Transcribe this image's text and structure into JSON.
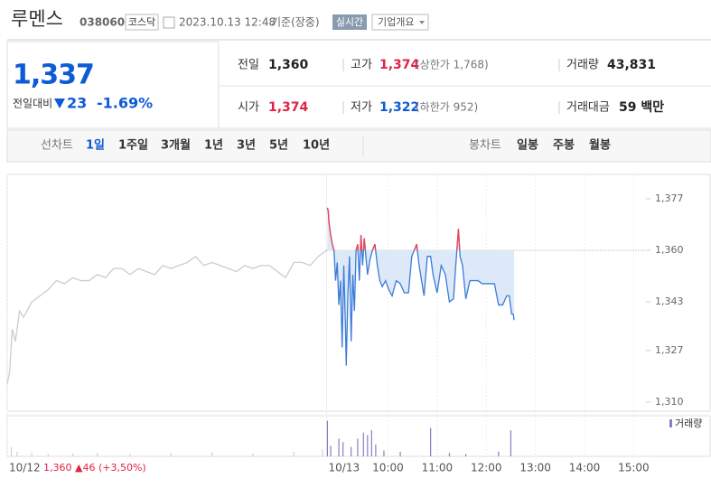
{
  "header": {
    "name": "루멘스",
    "code": "038060",
    "market": "코스닥",
    "datetime": "2023.10.13 12:48",
    "basis": "기준(장중)",
    "realtime": "실시간",
    "company": "기업개요"
  },
  "quote": {
    "price": "1,337",
    "change_label": "전일대비",
    "change": "23",
    "change_pct": "-1.69%",
    "fields": [
      {
        "label": "전일",
        "value": "1,360"
      },
      {
        "label": "고가",
        "value": "1,374",
        "note": "(상한가 1,768)"
      },
      {
        "label": "거래량",
        "value": "43,831"
      },
      {
        "label": "시가",
        "value": "1,374"
      },
      {
        "label": "저가",
        "value": "1,322",
        "note": "(하한가 952)"
      },
      {
        "label": "거래대금",
        "value": "59 백만"
      }
    ]
  },
  "tabs": {
    "line_label": "선차트",
    "line": [
      "1일",
      "1주일",
      "3개월",
      "1년",
      "3년",
      "5년",
      "10년"
    ],
    "candle_label": "봉차트",
    "candle": [
      "일봉",
      "주봉",
      "월봉"
    ]
  },
  "chart_data": {
    "type": "line",
    "annotation": "1,360 ▲46 (+3,50%)",
    "xlim": [
      0,
      780
    ],
    "xticks": [
      {
        "value": 0,
        "label": "10/12"
      },
      {
        "value": 390,
        "label": "10/13"
      },
      {
        "value": 465,
        "label": "10:00"
      },
      {
        "value": 525,
        "label": "11:00"
      },
      {
        "value": 585,
        "label": "12:00"
      },
      {
        "value": 645,
        "label": "13:00"
      },
      {
        "value": 705,
        "label": "14:00"
      },
      {
        "value": 765,
        "label": "15:00"
      }
    ],
    "ylim": [
      1307,
      1385
    ],
    "yticks": [
      {
        "value": 1310,
        "label": "1,310"
      },
      {
        "value": 1327,
        "label": "1,327"
      },
      {
        "value": 1343,
        "label": "1,343"
      },
      {
        "value": 1360,
        "label": "1,360"
      },
      {
        "value": 1377,
        "label": "1,377"
      }
    ],
    "reference_line": 1360,
    "series": [
      {
        "color": "#cccccc",
        "x": [
          0,
          3,
          6,
          10,
          15,
          20,
          30,
          40,
          50,
          60,
          70,
          80,
          90,
          100,
          110,
          120,
          130,
          140,
          150,
          160,
          170,
          180,
          190,
          200,
          210,
          220,
          230,
          240,
          250,
          260,
          270,
          280,
          290,
          300,
          310,
          320,
          330,
          340,
          350,
          360,
          370,
          380,
          390
        ],
        "values": [
          1316,
          1320,
          1334,
          1330,
          1340,
          1338,
          1343,
          1345,
          1347,
          1350,
          1349,
          1351,
          1350,
          1350,
          1352,
          1351,
          1354,
          1354,
          1352,
          1354,
          1353,
          1352,
          1355,
          1354,
          1355,
          1356,
          1358,
          1355,
          1356,
          1355,
          1354,
          1353,
          1355,
          1354,
          1355,
          1355,
          1353,
          1351,
          1356,
          1356,
          1355,
          1358,
          1360
        ]
      },
      {
        "color": "#3b7bd8",
        "up_color": "#f0424f",
        "fill": "#dde9f8",
        "x": [
          391,
          392,
          393,
          395,
          397,
          399,
          401,
          403,
          405,
          407,
          409,
          411,
          413,
          414,
          416,
          418,
          420,
          422,
          424,
          426,
          428,
          430,
          432,
          434,
          436,
          438,
          440,
          443,
          446,
          449,
          452,
          455,
          458,
          462,
          466,
          470,
          475,
          480,
          485,
          490,
          494,
          497,
          500,
          503,
          506,
          509,
          513,
          517,
          520,
          525,
          530,
          535,
          540,
          545,
          548,
          551,
          553,
          556,
          560,
          565,
          570,
          575,
          580,
          585,
          590,
          595,
          600,
          605,
          610,
          613,
          616,
          618,
          619
        ],
        "values": [
          1374,
          1373,
          1369,
          1365,
          1362,
          1360,
          1350,
          1356,
          1342,
          1350,
          1328,
          1355,
          1335,
          1322,
          1345,
          1358,
          1330,
          1352,
          1340,
          1360,
          1362,
          1350,
          1365,
          1355,
          1364,
          1358,
          1352,
          1357,
          1360,
          1362,
          1355,
          1350,
          1348,
          1350,
          1347,
          1345,
          1350,
          1349,
          1346,
          1346,
          1358,
          1360,
          1362,
          1355,
          1350,
          1345,
          1358,
          1358,
          1352,
          1346,
          1355,
          1352,
          1343,
          1344,
          1356,
          1367,
          1358,
          1355,
          1344,
          1350,
          1350,
          1350,
          1349,
          1349,
          1349,
          1349,
          1342,
          1342,
          1345,
          1345,
          1339,
          1339,
          1337
        ]
      }
    ],
    "volume": {
      "label": "거래량",
      "ylim": [
        0,
        3200
      ],
      "series": [
        {
          "color": "#d0d0d0",
          "x": [
            5,
            12,
            30,
            50,
            80,
            110,
            150,
            200,
            250,
            300,
            350,
            385
          ],
          "values": [
            800,
            400,
            300,
            200,
            250,
            300,
            200,
            300,
            350,
            250,
            400,
            600
          ]
        },
        {
          "color": "#8e7cc3",
          "x": [
            391,
            395,
            405,
            410,
            420,
            428,
            435,
            440,
            445,
            450,
            460,
            480,
            517,
            540,
            560,
            600,
            615
          ],
          "values": [
            3000,
            900,
            1500,
            1200,
            800,
            1500,
            2000,
            1800,
            2200,
            1000,
            500,
            400,
            2400,
            300,
            200,
            400,
            2200
          ]
        }
      ]
    }
  }
}
